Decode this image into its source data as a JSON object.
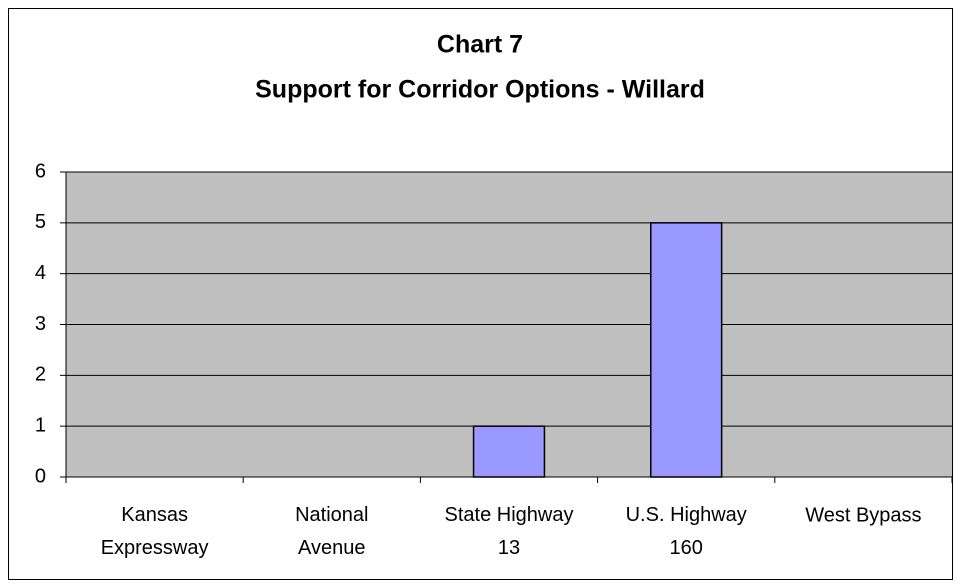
{
  "chart_data": {
    "type": "bar",
    "title": "Chart 7",
    "subtitle": "Support for Corridor Options - Willard",
    "categories": [
      "Kansas\nExpressway",
      "National\nAvenue",
      "State Highway\n13",
      "U.S. Highway\n160",
      "West Bypass"
    ],
    "values": [
      0,
      0,
      1,
      5,
      0
    ],
    "color": "#9999ff",
    "ylim": [
      0,
      6
    ],
    "yticks": [
      0,
      1,
      2,
      3,
      4,
      5,
      6
    ],
    "grid": true
  }
}
